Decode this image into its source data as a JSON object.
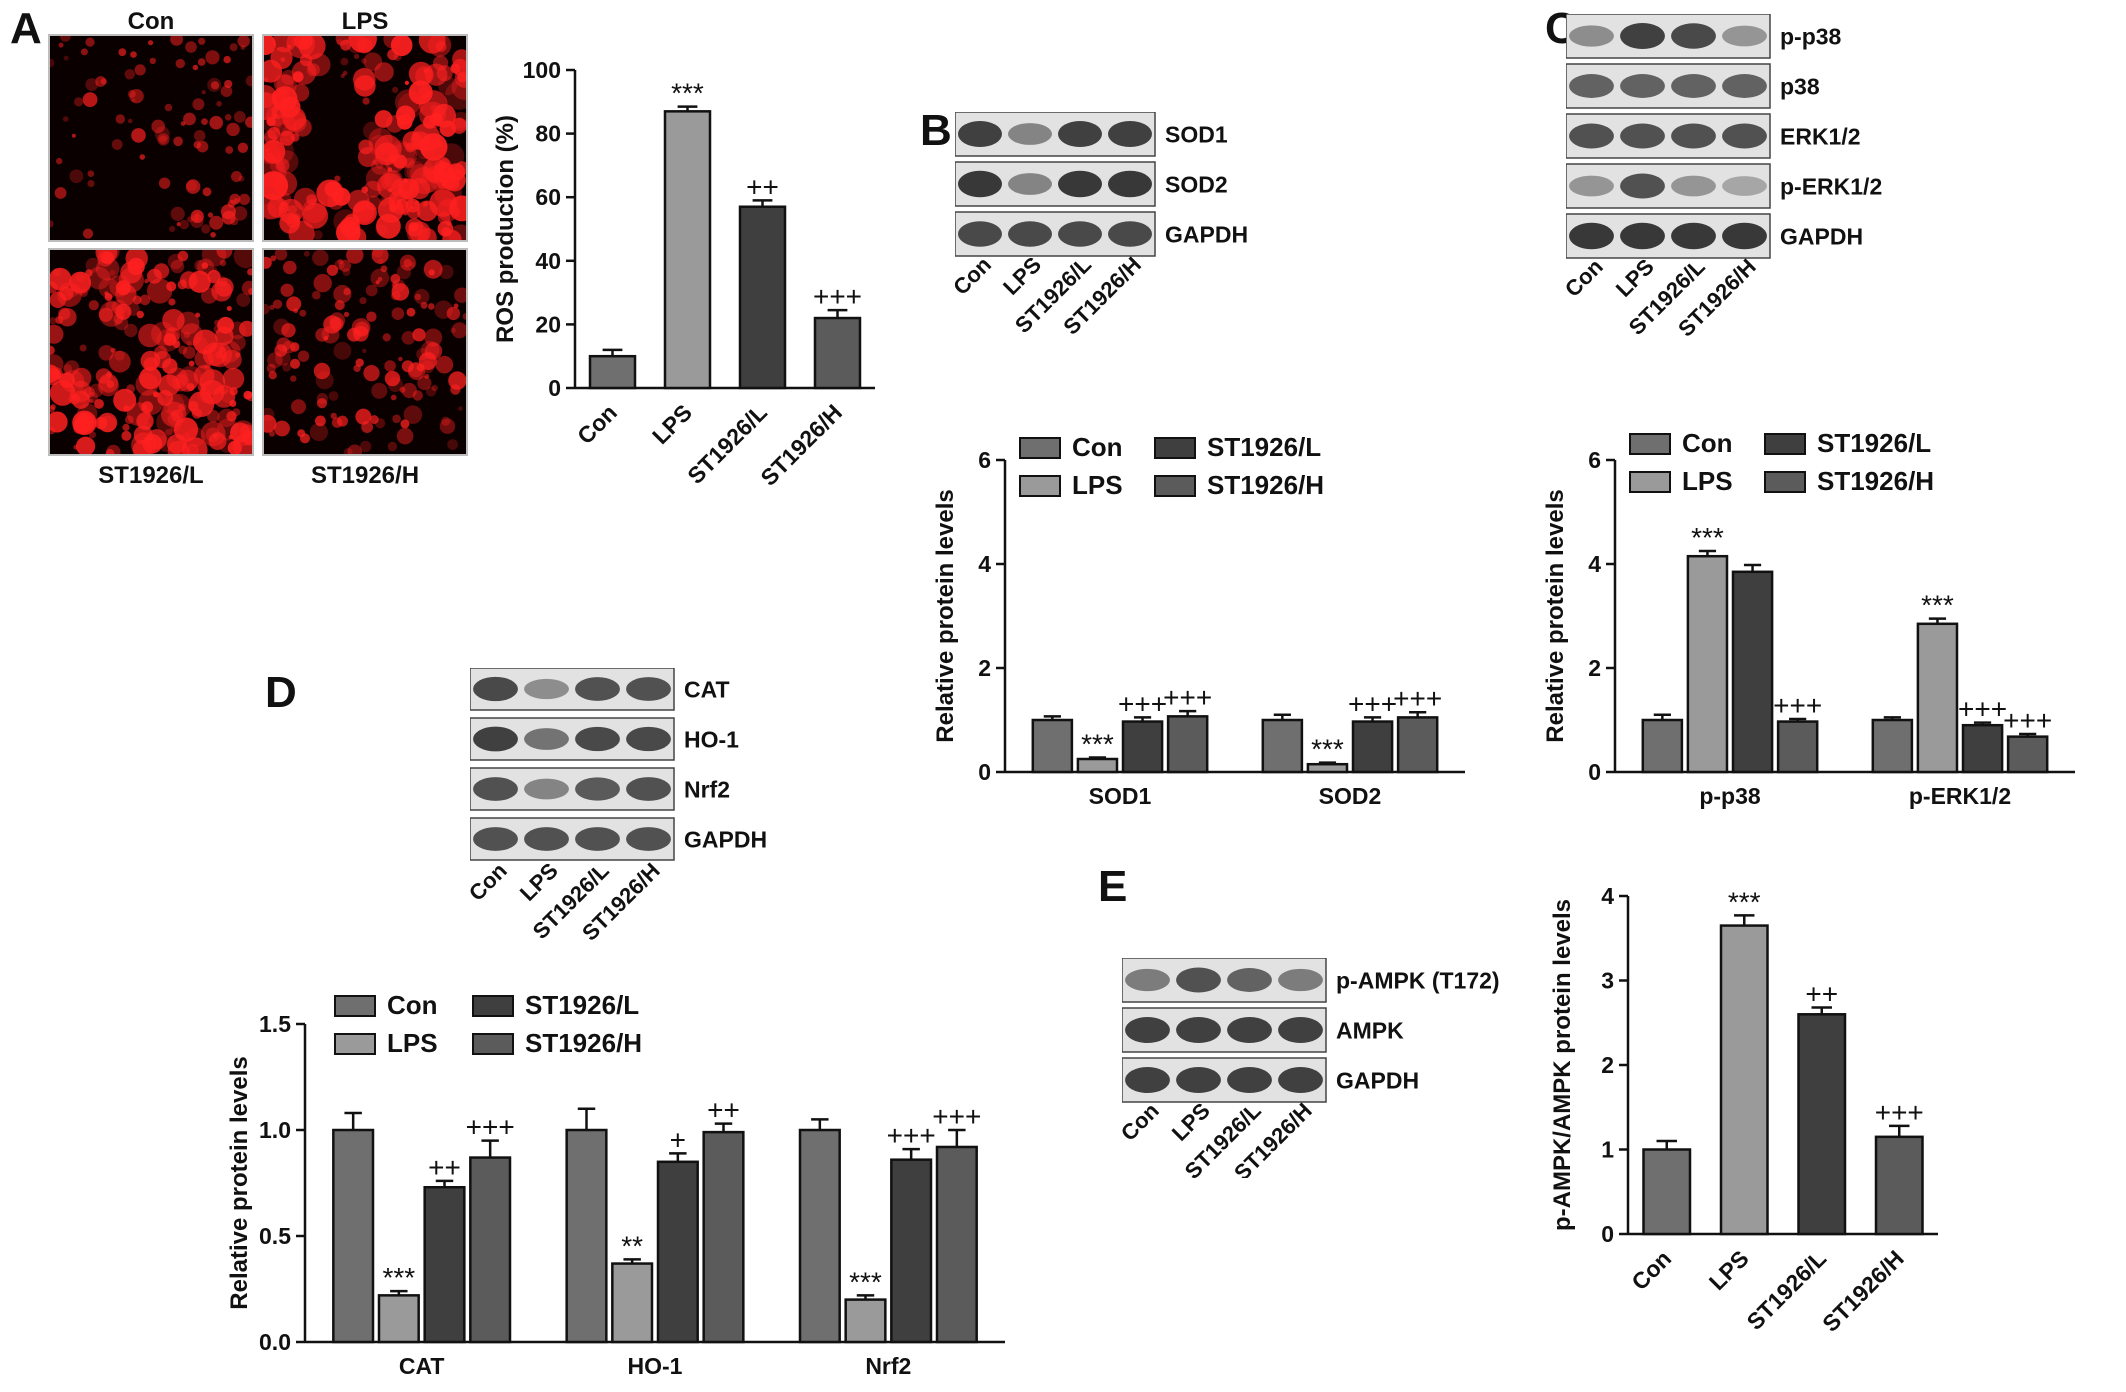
{
  "panels": {
    "A": {
      "letter": "A"
    },
    "B": {
      "letter": "B"
    },
    "C": {
      "letter": "C"
    },
    "D": {
      "letter": "D"
    },
    "E": {
      "letter": "E"
    }
  },
  "micrographs": [
    {
      "label": "Con",
      "intensity": 0.15
    },
    {
      "label": "LPS",
      "intensity": 0.85
    },
    {
      "label": "ST1926/L",
      "intensity": 0.7
    },
    {
      "label": "ST1926/H",
      "intensity": 0.35
    }
  ],
  "blots": {
    "B": {
      "bands": [
        "SOD1",
        "SOD2",
        "GAPDH"
      ],
      "lanes": [
        "Con",
        "LPS",
        "ST1926/L",
        "ST1926/H"
      ]
    },
    "C": {
      "bands": [
        "p-p38",
        "p38",
        "ERK1/2",
        "p-ERK1/2",
        "GAPDH"
      ],
      "lanes": [
        "Con",
        "LPS",
        "ST1926/L",
        "ST1926/H"
      ]
    },
    "D": {
      "bands": [
        "CAT",
        "HO-1",
        "Nrf2",
        "GAPDH"
      ],
      "lanes": [
        "Con",
        "LPS",
        "ST1926/L",
        "ST1926/H"
      ]
    },
    "E": {
      "bands": [
        "p-AMPK (T172)",
        "AMPK",
        "GAPDH"
      ],
      "lanes": [
        "Con",
        "LPS",
        "ST1926/L",
        "ST1926/H"
      ]
    }
  },
  "colors": {
    "Con": "#6f6f6f",
    "LPS": "#9a9a9a",
    "ST1926/L": "#3f3f3f",
    "ST1926/H": "#5b5b5b",
    "micro_red": "#ff2020",
    "micro_bg": "#0a0000"
  },
  "chart_data": [
    {
      "id": "A",
      "type": "bar",
      "categories": [
        "Con",
        "LPS",
        "ST1926/L",
        "ST1926/H"
      ],
      "values": [
        10,
        87,
        57,
        22
      ],
      "errors": [
        2,
        1.5,
        2,
        2.5
      ],
      "annotations": [
        "",
        "***",
        "++",
        "+++"
      ],
      "ylabel": "ROS production (%)",
      "ylim": [
        0,
        100
      ],
      "yticks": [
        "0",
        "20",
        "40",
        "60",
        "80",
        "100"
      ]
    },
    {
      "id": "B",
      "type": "bar",
      "groups": [
        "SOD1",
        "SOD2"
      ],
      "series": [
        {
          "name": "Con",
          "values": [
            1.0,
            1.0
          ],
          "errors": [
            0.07,
            0.1
          ],
          "annotations": [
            "",
            ""
          ]
        },
        {
          "name": "LPS",
          "values": [
            0.25,
            0.15
          ],
          "errors": [
            0.03,
            0.03
          ],
          "annotations": [
            "***",
            "***"
          ]
        },
        {
          "name": "ST1926/L",
          "values": [
            0.97,
            0.97
          ],
          "errors": [
            0.08,
            0.08
          ],
          "annotations": [
            "+++",
            "+++"
          ]
        },
        {
          "name": "ST1926/H",
          "values": [
            1.07,
            1.05
          ],
          "errors": [
            0.1,
            0.1
          ],
          "annotations": [
            "+++",
            "+++"
          ]
        }
      ],
      "ylabel": "Relative protein levels",
      "ylim": [
        0,
        6
      ],
      "yticks": [
        "0",
        "2",
        "4",
        "6"
      ],
      "legend": "top-left"
    },
    {
      "id": "C",
      "type": "bar",
      "groups": [
        "p-p38",
        "p-ERK1/2"
      ],
      "series": [
        {
          "name": "Con",
          "values": [
            1.0,
            1.0
          ],
          "errors": [
            0.1,
            0.05
          ],
          "annotations": [
            "",
            ""
          ]
        },
        {
          "name": "LPS",
          "values": [
            4.15,
            2.85
          ],
          "errors": [
            0.1,
            0.1
          ],
          "annotations": [
            "***",
            "***"
          ]
        },
        {
          "name": "ST1926/L",
          "values": [
            3.85,
            0.9
          ],
          "errors": [
            0.13,
            0.05
          ],
          "annotations": [
            "",
            "+++"
          ]
        },
        {
          "name": "ST1926/H",
          "values": [
            0.97,
            0.68
          ],
          "errors": [
            0.05,
            0.05
          ],
          "annotations": [
            "+++",
            "+++"
          ]
        }
      ],
      "ylabel": "Relative protein levels",
      "ylim": [
        0,
        6
      ],
      "yticks": [
        "0",
        "2",
        "4",
        "6"
      ],
      "legend": "top-left"
    },
    {
      "id": "D",
      "type": "bar",
      "groups": [
        "CAT",
        "HO-1",
        "Nrf2"
      ],
      "series": [
        {
          "name": "Con",
          "values": [
            1.0,
            1.0,
            1.0
          ],
          "errors": [
            0.08,
            0.1,
            0.05
          ],
          "annotations": [
            "",
            "",
            ""
          ]
        },
        {
          "name": "LPS",
          "values": [
            0.22,
            0.37,
            0.2
          ],
          "errors": [
            0.02,
            0.02,
            0.02
          ],
          "annotations": [
            "***",
            "**",
            "***"
          ]
        },
        {
          "name": "ST1926/L",
          "values": [
            0.73,
            0.85,
            0.86
          ],
          "errors": [
            0.03,
            0.04,
            0.05
          ],
          "annotations": [
            "++",
            "+",
            "+++"
          ]
        },
        {
          "name": "ST1926/H",
          "values": [
            0.87,
            0.99,
            0.92
          ],
          "errors": [
            0.08,
            0.04,
            0.08
          ],
          "annotations": [
            "+++",
            "++",
            "+++"
          ]
        }
      ],
      "ylabel": "Relative protein levels",
      "ylim": [
        0,
        1.5
      ],
      "yticks": [
        "0.0",
        "0.5",
        "1.0",
        "1.5"
      ],
      "legend": "top-left"
    },
    {
      "id": "E",
      "type": "bar",
      "categories": [
        "Con",
        "LPS",
        "ST1926/L",
        "ST1926/H"
      ],
      "values": [
        1.0,
        3.65,
        2.6,
        1.15
      ],
      "errors": [
        0.1,
        0.12,
        0.08,
        0.13
      ],
      "annotations": [
        "",
        "***",
        "++",
        "+++"
      ],
      "ylabel": "p-AMPK/AMPK protein levels",
      "ylim": [
        0,
        4
      ],
      "yticks": [
        "0",
        "1",
        "2",
        "3",
        "4"
      ]
    }
  ]
}
